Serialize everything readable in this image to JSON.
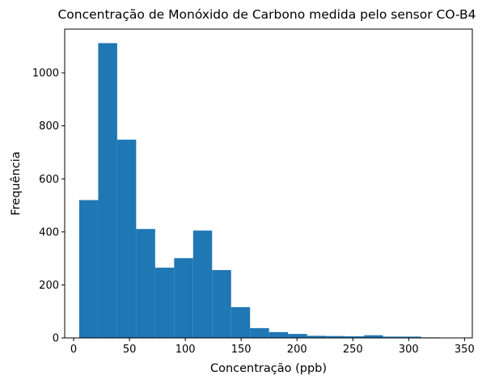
{
  "chart_data": {
    "type": "bar",
    "subtype": "histogram",
    "title": "Concentração de Monóxido de Carbono medida pelo sensor CO-B4",
    "xlabel": "Concentração (ppb)",
    "ylabel": "Frequência",
    "xlim": [
      -8,
      357
    ],
    "ylim": [
      0,
      1165
    ],
    "xticks": [
      0,
      50,
      100,
      150,
      200,
      250,
      300,
      350
    ],
    "yticks": [
      0,
      200,
      400,
      600,
      800,
      1000
    ],
    "bin_edges": [
      5,
      22,
      39,
      56,
      73,
      90,
      107,
      124,
      141,
      158,
      175,
      192,
      209,
      226,
      243,
      260,
      277,
      294,
      311,
      328,
      345
    ],
    "values": [
      520,
      1112,
      748,
      411,
      265,
      301,
      405,
      256,
      116,
      37,
      22,
      15,
      8,
      7,
      6,
      10,
      5,
      5,
      2,
      1
    ],
    "bar_color": "#1f77b4"
  }
}
